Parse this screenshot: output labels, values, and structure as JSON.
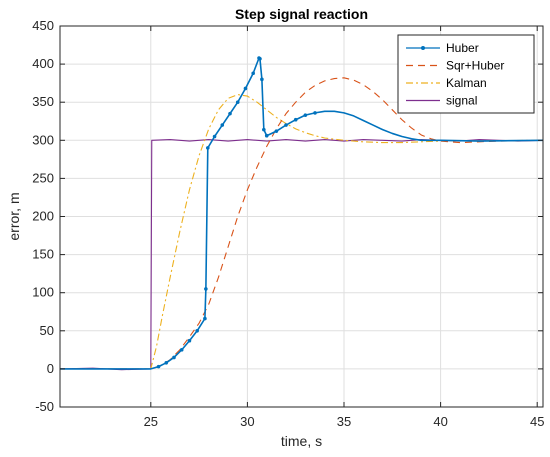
{
  "chart_data": {
    "type": "line",
    "title": "Step signal reaction",
    "xlabel": "time, s",
    "ylabel": "error, m",
    "xlim": [
      20.3,
      45.3
    ],
    "ylim": [
      -50,
      450
    ],
    "xticks": [
      25,
      30,
      35,
      40,
      45
    ],
    "yticks": [
      -50,
      0,
      50,
      100,
      150,
      200,
      250,
      300,
      350,
      400,
      450
    ],
    "grid": true,
    "legend_position": "top-right",
    "series": [
      {
        "name": "Huber",
        "color": "#0072BD",
        "style": "solid-with-dots",
        "points": [
          [
            20.3,
            0
          ],
          [
            24.6,
            0
          ],
          [
            25.0,
            0
          ],
          [
            25.4,
            3
          ],
          [
            25.8,
            8
          ],
          [
            26.2,
            15
          ],
          [
            26.6,
            25
          ],
          [
            27.0,
            37
          ],
          [
            27.4,
            50
          ],
          [
            27.8,
            66
          ],
          [
            27.85,
            105
          ],
          [
            27.95,
            290
          ],
          [
            28.3,
            305
          ],
          [
            28.7,
            320
          ],
          [
            29.1,
            335
          ],
          [
            29.5,
            350
          ],
          [
            29.9,
            368
          ],
          [
            30.3,
            388
          ],
          [
            30.6,
            408
          ],
          [
            30.65,
            407
          ],
          [
            30.75,
            380
          ],
          [
            30.85,
            314
          ],
          [
            31.0,
            306
          ],
          [
            31.5,
            312
          ],
          [
            32.0,
            320
          ],
          [
            32.5,
            327
          ],
          [
            33.0,
            333
          ],
          [
            33.5,
            336
          ],
          [
            34.0,
            338
          ],
          [
            34.5,
            338
          ],
          [
            35.0,
            336
          ],
          [
            35.5,
            332
          ],
          [
            36.0,
            326
          ],
          [
            36.5,
            320
          ],
          [
            37.0,
            314
          ],
          [
            37.5,
            309
          ],
          [
            38.0,
            305
          ],
          [
            38.5,
            302
          ],
          [
            39.0,
            300
          ],
          [
            40.0,
            300
          ],
          [
            42.0,
            299
          ],
          [
            45.3,
            300
          ]
        ]
      },
      {
        "name": "Sqr+Huber",
        "color": "#D95319",
        "style": "dashed",
        "points": [
          [
            20.3,
            0
          ],
          [
            25.0,
            0
          ],
          [
            25.5,
            4
          ],
          [
            26.0,
            12
          ],
          [
            26.5,
            25
          ],
          [
            27.0,
            42
          ],
          [
            27.5,
            60
          ],
          [
            28.0,
            85
          ],
          [
            28.5,
            120
          ],
          [
            29.0,
            160
          ],
          [
            29.5,
            200
          ],
          [
            30.0,
            235
          ],
          [
            30.5,
            265
          ],
          [
            31.0,
            292
          ],
          [
            31.5,
            315
          ],
          [
            32.0,
            335
          ],
          [
            32.5,
            350
          ],
          [
            33.0,
            363
          ],
          [
            33.5,
            372
          ],
          [
            34.0,
            378
          ],
          [
            34.5,
            381
          ],
          [
            35.0,
            382
          ],
          [
            35.5,
            379
          ],
          [
            36.0,
            373
          ],
          [
            36.5,
            364
          ],
          [
            37.0,
            353
          ],
          [
            37.5,
            340
          ],
          [
            38.0,
            327
          ],
          [
            38.5,
            316
          ],
          [
            39.0,
            307
          ],
          [
            39.5,
            302
          ],
          [
            40.0,
            299
          ],
          [
            41.0,
            297
          ],
          [
            42.0,
            298
          ],
          [
            43.0,
            299
          ],
          [
            45.3,
            300
          ]
        ]
      },
      {
        "name": "Kalman",
        "color": "#EDB120",
        "style": "dash-dot",
        "points": [
          [
            20.3,
            0
          ],
          [
            25.0,
            0
          ],
          [
            25.3,
            30
          ],
          [
            25.6,
            70
          ],
          [
            26.0,
            120
          ],
          [
            26.5,
            180
          ],
          [
            27.0,
            235
          ],
          [
            27.5,
            280
          ],
          [
            28.0,
            315
          ],
          [
            28.5,
            340
          ],
          [
            29.0,
            355
          ],
          [
            29.5,
            360
          ],
          [
            30.0,
            358
          ],
          [
            30.5,
            350
          ],
          [
            31.0,
            340
          ],
          [
            31.5,
            330
          ],
          [
            32.0,
            322
          ],
          [
            32.5,
            315
          ],
          [
            33.0,
            310
          ],
          [
            33.5,
            306
          ],
          [
            34.0,
            303
          ],
          [
            35.0,
            300
          ],
          [
            36.0,
            298
          ],
          [
            37.0,
            297
          ],
          [
            38.0,
            297
          ],
          [
            40.0,
            299
          ],
          [
            45.3,
            300
          ]
        ]
      },
      {
        "name": "signal",
        "color": "#7E2F8E",
        "style": "solid",
        "points": [
          [
            20.3,
            0
          ],
          [
            22.0,
            1
          ],
          [
            23.5,
            -1
          ],
          [
            25.0,
            0
          ],
          [
            25.05,
            300
          ],
          [
            26.0,
            301
          ],
          [
            27.0,
            299
          ],
          [
            28.0,
            301
          ],
          [
            29.0,
            299
          ],
          [
            30.0,
            301
          ],
          [
            31.0,
            299
          ],
          [
            32.0,
            301
          ],
          [
            33.0,
            299
          ],
          [
            34.0,
            301
          ],
          [
            35.0,
            299
          ],
          [
            36.0,
            301
          ],
          [
            37.0,
            300
          ],
          [
            38.0,
            299
          ],
          [
            39.0,
            301
          ],
          [
            40.0,
            300
          ],
          [
            41.0,
            299
          ],
          [
            42.0,
            301
          ],
          [
            43.0,
            300
          ],
          [
            44.0,
            299
          ],
          [
            45.3,
            300
          ]
        ]
      }
    ]
  }
}
